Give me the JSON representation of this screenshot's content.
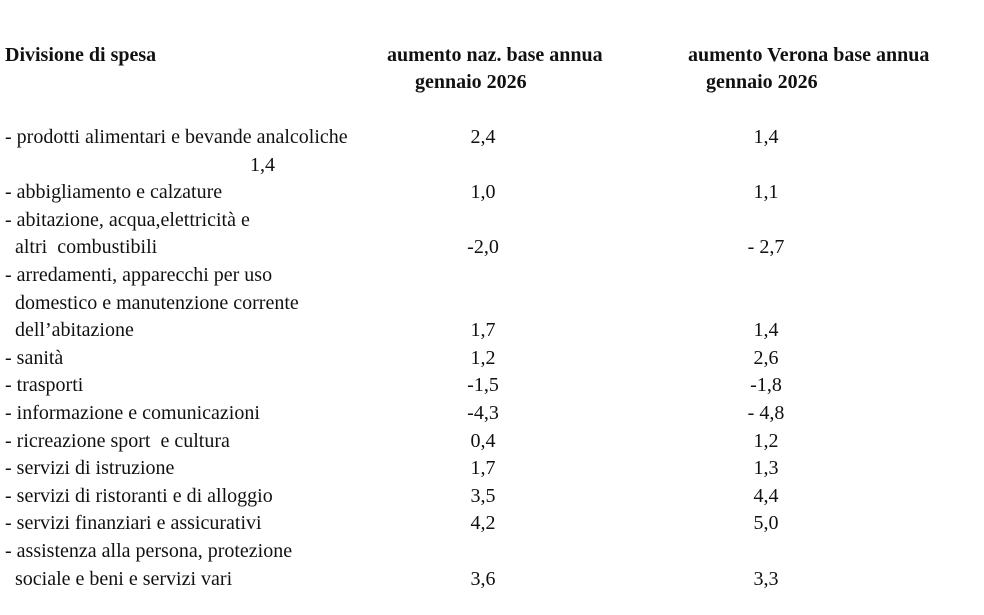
{
  "header": {
    "col1": "Divisione di spesa",
    "col2_line1": "aumento naz. base annua",
    "col2_line2": "gennaio 2026",
    "col3_line1": "aumento Verona base annua",
    "col3_line2": "gennaio 2026"
  },
  "stray_value": "1,4",
  "rows": [
    {
      "label": [
        "- prodotti alimentari e bevande analcoliche"
      ],
      "naz": "2,4",
      "verona": "1,4"
    },
    {
      "label": [
        "- abbigliamento e calzature"
      ],
      "naz": "1,0",
      "verona": "1,1"
    },
    {
      "label": [
        "- abitazione, acqua,elettricità e",
        "  altri  combustibili"
      ],
      "naz": "-2,0",
      "verona": "- 2,7"
    },
    {
      "label": [
        "- arredamenti, apparecchi per uso",
        "  domestico e manutenzione corrente",
        "  dell’abitazione"
      ],
      "naz": "1,7",
      "verona": "1,4"
    },
    {
      "label": [
        "- sanità"
      ],
      "naz": "1,2",
      "verona": "2,6"
    },
    {
      "label": [
        "- trasporti"
      ],
      "naz": "-1,5",
      "verona": "-1,8"
    },
    {
      "label": [
        "- informazione e comunicazioni"
      ],
      "naz": "-4,3",
      "verona": "- 4,8"
    },
    {
      "label": [
        "- ricreazione sport  e cultura"
      ],
      "naz": "0,4",
      "verona": "1,2"
    },
    {
      "label": [
        "- servizi di istruzione"
      ],
      "naz": "1,7",
      "verona": "1,3"
    },
    {
      "label": [
        "- servizi di ristoranti e di alloggio"
      ],
      "naz": "3,5",
      "verona": "4,4"
    },
    {
      "label": [
        "- servizi finanziari e assicurativi"
      ],
      "naz": "4,2",
      "verona": "5,0"
    },
    {
      "label": [
        "- assistenza alla persona, protezione",
        "  sociale e beni e servizi vari"
      ],
      "naz": "3,6",
      "verona": "3,3"
    }
  ]
}
